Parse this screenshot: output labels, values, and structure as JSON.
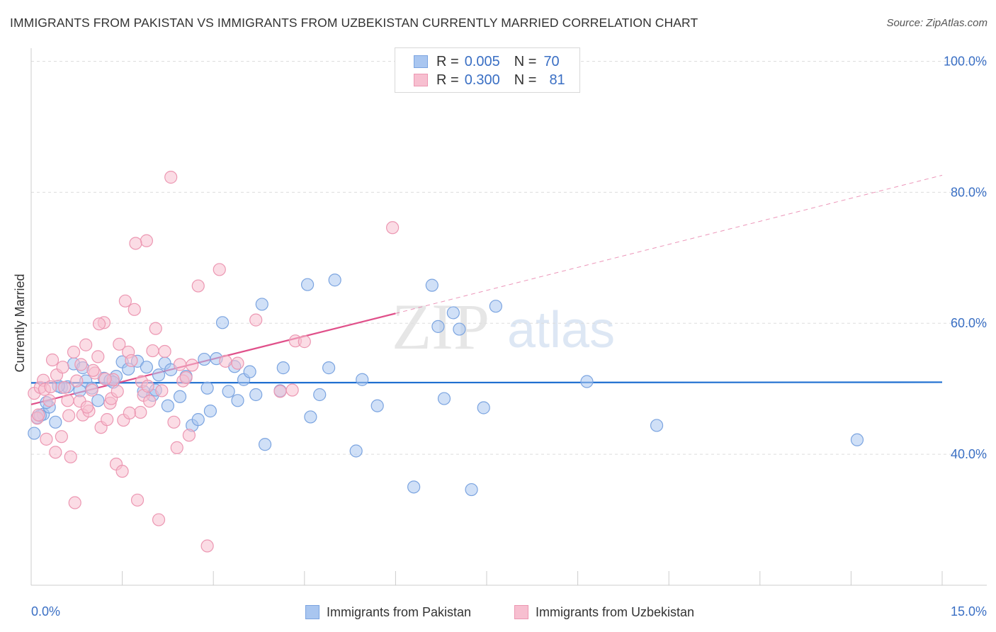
{
  "title": "IMMIGRANTS FROM PAKISTAN VS IMMIGRANTS FROM UZBEKISTAN CURRENTLY MARRIED CORRELATION CHART",
  "source": "Source: ZipAtlas.com",
  "watermark": {
    "zip": "ZIP",
    "atlas": "atlas"
  },
  "colors": {
    "pakistan_fill": "#a9c6f0",
    "pakistan_stroke": "#7ba4e0",
    "pakistan_line": "#1f6fd0",
    "uzbekistan_fill": "#f7bfd0",
    "uzbekistan_stroke": "#ec97b2",
    "uzbekistan_line": "#e0508a",
    "tick_label": "#3a6fc4",
    "grid": "#dddddd"
  },
  "legend": {
    "rows": [
      {
        "r_label": "R =",
        "r_value": "0.005",
        "n_label": "N =",
        "n_value": "70"
      },
      {
        "r_label": "R =",
        "r_value": "0.300",
        "n_label": "N =",
        "n_value": "81"
      }
    ]
  },
  "bottom_legend": [
    {
      "label": "Immigrants from Pakistan"
    },
    {
      "label": "Immigrants from Uzbekistan"
    }
  ],
  "chart_data": {
    "type": "scatter",
    "title": "IMMIGRANTS FROM PAKISTAN VS IMMIGRANTS FROM UZBEKISTAN CURRENTLY MARRIED CORRELATION CHART",
    "xlabel": "",
    "ylabel": "Currently Married",
    "xlim": [
      0,
      15
    ],
    "ylim": [
      20,
      102
    ],
    "x_tick_labels": [
      {
        "value": 0,
        "label": "0.0%"
      },
      {
        "value": 15,
        "label": "15.0%"
      }
    ],
    "y_tick_labels": [
      {
        "value": 40,
        "label": "40.0%"
      },
      {
        "value": 60,
        "label": "60.0%"
      },
      {
        "value": 80,
        "label": "80.0%"
      },
      {
        "value": 100,
        "label": "100.0%"
      }
    ],
    "grid": true,
    "legend_position": "top-center",
    "series": [
      {
        "name": "Immigrants from Pakistan",
        "r": 0.005,
        "n": 70,
        "trend": {
          "x": [
            0,
            15
          ],
          "y": [
            50.9,
            51.0
          ],
          "style": "solid"
        },
        "points": [
          [
            0.1,
            45.6
          ],
          [
            0.2,
            46.1
          ],
          [
            0.15,
            45.9
          ],
          [
            0.3,
            47.2
          ],
          [
            0.4,
            44.9
          ],
          [
            0.5,
            50.2
          ],
          [
            0.6,
            50.3
          ],
          [
            0.7,
            53.8
          ],
          [
            0.8,
            49.7
          ],
          [
            0.85,
            53.2
          ],
          [
            0.9,
            51.2
          ],
          [
            1.1,
            48.2
          ],
          [
            1.2,
            51.6
          ],
          [
            1.3,
            51.3
          ],
          [
            1.4,
            51.9
          ],
          [
            1.5,
            54.1
          ],
          [
            1.6,
            53.0
          ],
          [
            1.75,
            54.2
          ],
          [
            1.85,
            49.6
          ],
          [
            1.9,
            53.3
          ],
          [
            2.0,
            49.0
          ],
          [
            2.1,
            52.1
          ],
          [
            2.2,
            53.9
          ],
          [
            2.25,
            47.4
          ],
          [
            2.3,
            52.9
          ],
          [
            2.45,
            48.8
          ],
          [
            2.55,
            51.9
          ],
          [
            2.65,
            44.4
          ],
          [
            2.75,
            45.3
          ],
          [
            2.85,
            54.5
          ],
          [
            2.9,
            50.1
          ],
          [
            2.95,
            46.6
          ],
          [
            3.05,
            54.6
          ],
          [
            3.15,
            60.1
          ],
          [
            3.25,
            49.6
          ],
          [
            3.35,
            53.4
          ],
          [
            3.4,
            48.2
          ],
          [
            3.5,
            51.4
          ],
          [
            3.6,
            52.6
          ],
          [
            3.7,
            49.1
          ],
          [
            3.8,
            62.9
          ],
          [
            3.85,
            41.5
          ],
          [
            4.1,
            49.7
          ],
          [
            4.15,
            53.2
          ],
          [
            4.55,
            65.9
          ],
          [
            4.6,
            45.7
          ],
          [
            4.75,
            49.1
          ],
          [
            4.9,
            53.2
          ],
          [
            5.0,
            66.6
          ],
          [
            5.35,
            40.5
          ],
          [
            5.45,
            51.4
          ],
          [
            5.7,
            47.4
          ],
          [
            6.3,
            35.0
          ],
          [
            6.6,
            65.8
          ],
          [
            6.7,
            59.5
          ],
          [
            6.8,
            48.5
          ],
          [
            6.95,
            61.6
          ],
          [
            7.05,
            59.1
          ],
          [
            7.25,
            34.6
          ],
          [
            7.45,
            47.1
          ],
          [
            7.65,
            62.6
          ],
          [
            9.15,
            51.1
          ],
          [
            10.3,
            44.4
          ],
          [
            13.6,
            42.2
          ],
          [
            0.05,
            43.2
          ],
          [
            0.25,
            47.9
          ],
          [
            1.0,
            50.1
          ],
          [
            1.35,
            51.0
          ],
          [
            2.05,
            49.8
          ],
          [
            0.45,
            50.4
          ]
        ]
      },
      {
        "name": "Immigrants from Uzbekistan",
        "r": 0.3,
        "n": 81,
        "trend": {
          "x": [
            0,
            6
          ],
          "y": [
            47.6,
            61.5
          ],
          "style": "solid",
          "extended_to": {
            "x": 15,
            "y": 82.6
          }
        },
        "points": [
          [
            0.05,
            49.3
          ],
          [
            0.1,
            45.5
          ],
          [
            0.15,
            50.2
          ],
          [
            0.2,
            51.3
          ],
          [
            0.25,
            42.3
          ],
          [
            0.3,
            48.2
          ],
          [
            0.35,
            54.4
          ],
          [
            0.4,
            40.3
          ],
          [
            0.5,
            42.7
          ],
          [
            0.55,
            50.2
          ],
          [
            0.6,
            48.2
          ],
          [
            0.65,
            39.6
          ],
          [
            0.7,
            55.6
          ],
          [
            0.75,
            51.2
          ],
          [
            0.8,
            48.1
          ],
          [
            0.85,
            46.0
          ],
          [
            0.9,
            56.7
          ],
          [
            0.95,
            46.6
          ],
          [
            1.0,
            49.8
          ],
          [
            1.05,
            52.4
          ],
          [
            1.1,
            54.9
          ],
          [
            1.15,
            44.1
          ],
          [
            1.2,
            60.1
          ],
          [
            1.25,
            45.3
          ],
          [
            1.3,
            47.8
          ],
          [
            1.35,
            51.4
          ],
          [
            1.4,
            38.5
          ],
          [
            1.45,
            56.8
          ],
          [
            1.5,
            37.4
          ],
          [
            1.55,
            63.4
          ],
          [
            1.6,
            55.6
          ],
          [
            1.65,
            54.3
          ],
          [
            1.7,
            62.1
          ],
          [
            1.75,
            33.0
          ],
          [
            1.8,
            46.4
          ],
          [
            1.85,
            49.0
          ],
          [
            1.9,
            72.6
          ],
          [
            1.95,
            48.1
          ],
          [
            2.0,
            55.8
          ],
          [
            2.05,
            59.2
          ],
          [
            2.1,
            30.0
          ],
          [
            2.15,
            49.7
          ],
          [
            2.2,
            55.7
          ],
          [
            2.3,
            82.3
          ],
          [
            2.35,
            44.9
          ],
          [
            2.4,
            41.0
          ],
          [
            2.45,
            53.7
          ],
          [
            2.5,
            51.2
          ],
          [
            2.55,
            51.7
          ],
          [
            2.6,
            42.9
          ],
          [
            2.65,
            53.6
          ],
          [
            2.75,
            65.7
          ],
          [
            2.9,
            26.0
          ],
          [
            3.1,
            68.2
          ],
          [
            3.2,
            54.2
          ],
          [
            3.4,
            53.9
          ],
          [
            3.7,
            60.5
          ],
          [
            4.1,
            49.6
          ],
          [
            4.3,
            49.8
          ],
          [
            4.35,
            57.3
          ],
          [
            4.5,
            57.2
          ],
          [
            5.95,
            74.6
          ],
          [
            0.12,
            46.0
          ],
          [
            0.22,
            49.9
          ],
          [
            0.32,
            50.3
          ],
          [
            0.42,
            52.1
          ],
          [
            0.52,
            53.3
          ],
          [
            0.62,
            45.9
          ],
          [
            0.72,
            32.6
          ],
          [
            0.82,
            53.7
          ],
          [
            0.92,
            47.2
          ],
          [
            1.02,
            52.8
          ],
          [
            1.12,
            59.9
          ],
          [
            1.22,
            51.5
          ],
          [
            1.32,
            48.5
          ],
          [
            1.42,
            49.6
          ],
          [
            1.52,
            45.2
          ],
          [
            1.62,
            46.3
          ],
          [
            1.72,
            72.2
          ],
          [
            1.82,
            51.1
          ],
          [
            1.92,
            50.4
          ]
        ]
      }
    ]
  }
}
